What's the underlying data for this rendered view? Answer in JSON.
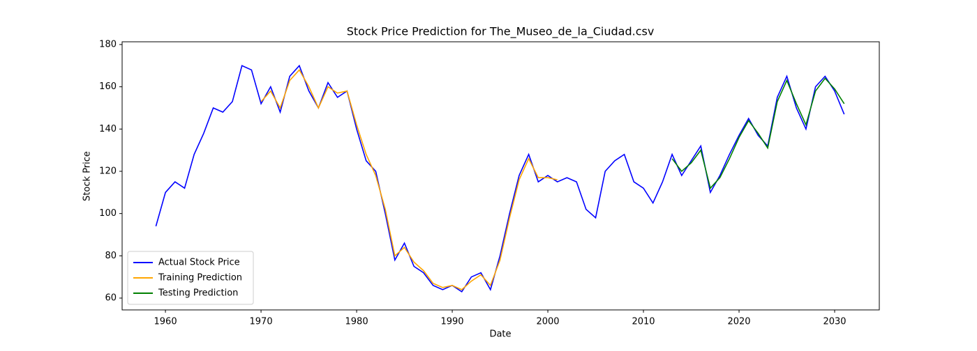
{
  "chart_data": {
    "type": "line",
    "title": "Stock Price Prediction for The_Museo_de_la_Ciudad.csv",
    "xlabel": "Date",
    "ylabel": "Stock Price",
    "x": [
      1959,
      1960,
      1961,
      1962,
      1963,
      1964,
      1965,
      1966,
      1967,
      1968,
      1969,
      1970,
      1971,
      1972,
      1973,
      1974,
      1975,
      1976,
      1977,
      1978,
      1979,
      1980,
      1981,
      1982,
      1983,
      1984,
      1985,
      1986,
      1987,
      1988,
      1989,
      1990,
      1991,
      1992,
      1993,
      1994,
      1995,
      1996,
      1997,
      1998,
      1999,
      2000,
      2001,
      2002,
      2003,
      2004,
      2005,
      2006,
      2007,
      2008,
      2009,
      2010,
      2011,
      2012,
      2013,
      2014,
      2015,
      2016,
      2017,
      2018,
      2019,
      2020,
      2021,
      2022,
      2023,
      2024,
      2025,
      2026,
      2027,
      2028,
      2029,
      2030,
      2031
    ],
    "series": [
      {
        "name": "Actual Stock Price",
        "color": "#0000ff",
        "values": [
          94,
          110,
          115,
          112,
          128,
          138,
          150,
          148,
          153,
          170,
          168,
          152,
          160,
          148,
          165,
          170,
          158,
          150,
          162,
          155,
          158,
          140,
          125,
          120,
          100,
          78,
          86,
          75,
          72,
          66,
          64,
          66,
          63,
          70,
          72,
          64,
          80,
          100,
          118,
          128,
          115,
          118,
          115,
          117,
          115,
          102,
          98,
          120,
          125,
          128,
          115,
          112,
          105,
          115,
          128,
          118,
          125,
          132,
          110,
          118,
          128,
          137,
          145,
          137,
          132,
          155,
          165,
          150,
          140,
          160,
          165,
          158,
          147
        ]
      },
      {
        "name": "Training Prediction",
        "color": "#ffa500",
        "values": [
          null,
          null,
          null,
          null,
          null,
          null,
          null,
          null,
          null,
          null,
          null,
          153,
          158,
          150,
          163,
          168,
          160,
          150,
          160,
          157,
          158,
          142,
          128,
          118,
          102,
          80,
          84,
          77,
          73,
          67,
          65,
          66,
          64,
          68,
          71,
          66,
          78,
          98,
          116,
          126,
          117,
          117,
          116,
          null,
          null,
          null,
          null,
          null,
          null,
          null,
          null,
          null,
          null,
          null,
          null,
          null,
          null,
          null,
          null,
          null,
          null,
          null,
          null,
          null,
          null,
          null,
          null,
          null,
          null,
          null,
          null,
          null,
          null
        ]
      },
      {
        "name": "Testing Prediction",
        "color": "#008000",
        "values": [
          null,
          null,
          null,
          null,
          null,
          null,
          null,
          null,
          null,
          null,
          null,
          null,
          null,
          null,
          null,
          null,
          null,
          null,
          null,
          null,
          null,
          null,
          null,
          null,
          null,
          null,
          null,
          null,
          null,
          null,
          null,
          null,
          null,
          null,
          null,
          null,
          null,
          null,
          null,
          null,
          null,
          null,
          null,
          null,
          null,
          null,
          null,
          null,
          null,
          null,
          null,
          null,
          null,
          null,
          126,
          120,
          124,
          130,
          112,
          117,
          126,
          136,
          144,
          138,
          131,
          153,
          163,
          152,
          142,
          158,
          164,
          159,
          152
        ]
      }
    ],
    "xlim": [
      1955.47,
      2034.67
    ],
    "xticks": [
      1960,
      1970,
      1980,
      1990,
      2000,
      2010,
      2020,
      2030
    ],
    "ylim": [
      54.4,
      181.3
    ],
    "yticks": [
      60,
      80,
      100,
      120,
      140,
      160,
      180
    ],
    "legend": "lower left"
  }
}
